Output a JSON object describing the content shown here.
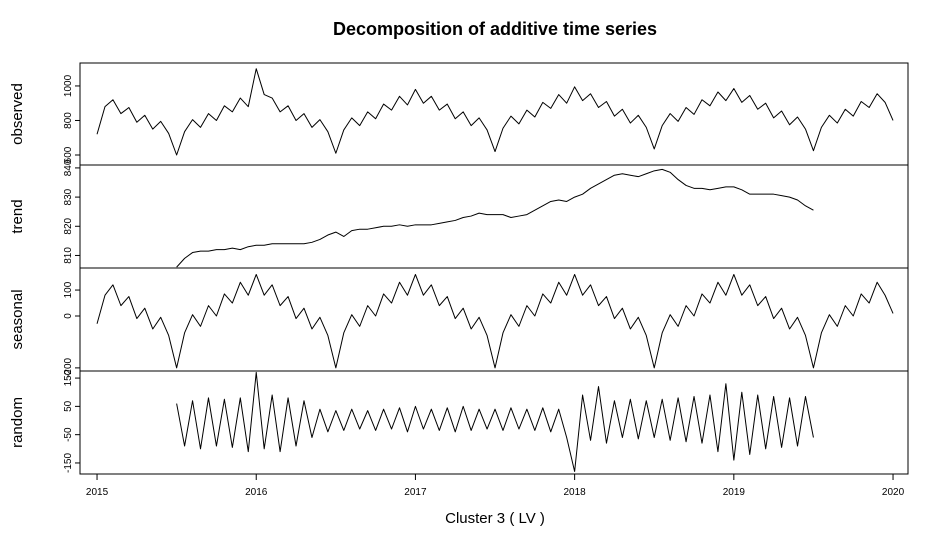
{
  "title": "Decomposition of additive time series",
  "x_label": "Cluster  3 ( LV )",
  "chart_data": [
    {
      "type": "line",
      "y_label": "observed",
      "color": "#000000",
      "xlim": [
        2014.893,
        2020.094
      ],
      "ylim": [
        542,
        1133
      ],
      "yticks": [
        600,
        800,
        1000
      ],
      "x": [
        2015,
        2015.05,
        2015.1,
        2015.15,
        2015.2,
        2015.25,
        2015.3,
        2015.35,
        2015.4,
        2015.45,
        2015.5,
        2015.55,
        2015.6,
        2015.65,
        2015.7,
        2015.75,
        2015.8,
        2015.85,
        2015.9,
        2015.95,
        2016,
        2016.05,
        2016.1,
        2016.15,
        2016.2,
        2016.25,
        2016.3,
        2016.35,
        2016.4,
        2016.45,
        2016.5,
        2016.55,
        2016.6,
        2016.65,
        2016.7,
        2016.75,
        2016.8,
        2016.85,
        2016.9,
        2016.95,
        2017,
        2017.05,
        2017.1,
        2017.15,
        2017.2,
        2017.25,
        2017.3,
        2017.35,
        2017.4,
        2017.45,
        2017.5,
        2017.55,
        2017.6,
        2017.65,
        2017.7,
        2017.75,
        2017.8,
        2017.85,
        2017.9,
        2017.95,
        2018,
        2018.05,
        2018.1,
        2018.15,
        2018.2,
        2018.25,
        2018.3,
        2018.35,
        2018.4,
        2018.45,
        2018.5,
        2018.55,
        2018.6,
        2018.65,
        2018.7,
        2018.75,
        2018.8,
        2018.85,
        2018.9,
        2018.95,
        2019,
        2019.05,
        2019.1,
        2019.15,
        2019.2,
        2019.25,
        2019.3,
        2019.35,
        2019.4,
        2019.45,
        2019.5,
        2019.55,
        2019.6,
        2019.65,
        2019.7,
        2019.75,
        2019.8,
        2019.85,
        2019.9,
        2019.95,
        2020
      ],
      "values": [
        720,
        880,
        920,
        840,
        875,
        790,
        830,
        750,
        795,
        725,
        600,
        735,
        805,
        760,
        840,
        800,
        885,
        850,
        930,
        880,
        1100,
        950,
        930,
        850,
        885,
        800,
        840,
        760,
        805,
        735,
        610,
        745,
        815,
        770,
        850,
        810,
        895,
        860,
        940,
        890,
        980,
        900,
        940,
        860,
        895,
        810,
        850,
        770,
        815,
        745,
        620,
        755,
        825,
        780,
        860,
        820,
        905,
        870,
        950,
        900,
        995,
        915,
        955,
        875,
        910,
        825,
        865,
        785,
        830,
        760,
        635,
        770,
        840,
        795,
        875,
        835,
        920,
        885,
        965,
        915,
        985,
        905,
        945,
        865,
        900,
        815,
        855,
        775,
        820,
        750,
        625,
        760,
        830,
        785,
        865,
        825,
        910,
        875,
        955,
        905,
        800
      ]
    },
    {
      "type": "line",
      "y_label": "trend",
      "color": "#000000",
      "xlim": [
        2014.893,
        2020.094
      ],
      "ylim": [
        805.7,
        841
      ],
      "yticks": [
        810,
        820,
        830,
        840
      ],
      "x": [
        2015.5,
        2015.55,
        2015.6,
        2015.65,
        2015.7,
        2015.75,
        2015.8,
        2015.85,
        2015.9,
        2015.95,
        2016,
        2016.05,
        2016.1,
        2016.15,
        2016.2,
        2016.25,
        2016.3,
        2016.35,
        2016.4,
        2016.45,
        2016.5,
        2016.55,
        2016.6,
        2016.65,
        2016.7,
        2016.75,
        2016.8,
        2016.85,
        2016.9,
        2016.95,
        2017,
        2017.05,
        2017.1,
        2017.15,
        2017.2,
        2017.25,
        2017.3,
        2017.35,
        2017.4,
        2017.45,
        2017.5,
        2017.55,
        2017.6,
        2017.65,
        2017.7,
        2017.75,
        2017.8,
        2017.85,
        2017.9,
        2017.95,
        2018,
        2018.05,
        2018.1,
        2018.15,
        2018.2,
        2018.25,
        2018.3,
        2018.35,
        2018.4,
        2018.45,
        2018.5,
        2018.55,
        2018.6,
        2018.65,
        2018.7,
        2018.75,
        2018.8,
        2018.85,
        2018.9,
        2018.95,
        2019,
        2019.05,
        2019.1,
        2019.15,
        2019.2,
        2019.25,
        2019.3,
        2019.35,
        2019.4,
        2019.45,
        2019.5
      ],
      "values": [
        806,
        809,
        811,
        811.5,
        811.5,
        812,
        812,
        812.5,
        812,
        813,
        813.5,
        813.5,
        814,
        814,
        814,
        814,
        814,
        814.5,
        815.5,
        817,
        818,
        816.5,
        818.5,
        819,
        819,
        819.5,
        820,
        820,
        820.5,
        820,
        820.5,
        820.5,
        820.5,
        821,
        821.5,
        822,
        823,
        823.5,
        824.5,
        824,
        824,
        824,
        823,
        823.5,
        824,
        825.5,
        827,
        828.5,
        829,
        828.5,
        830,
        831,
        833,
        834.5,
        836,
        837.5,
        838,
        837.5,
        837,
        838,
        839,
        839.5,
        838.5,
        836,
        834,
        833,
        833,
        832.5,
        833,
        833.5,
        833.5,
        832.5,
        831,
        831,
        831,
        831,
        830.5,
        830,
        829,
        827,
        825.5
      ]
    },
    {
      "type": "line",
      "y_label": "seasonal",
      "color": "#000000",
      "xlim": [
        2014.893,
        2020.094
      ],
      "ylim": [
        -212,
        185
      ],
      "yticks": [
        -200,
        0,
        100
      ],
      "x": [
        2015,
        2015.05,
        2015.1,
        2015.15,
        2015.2,
        2015.25,
        2015.3,
        2015.35,
        2015.4,
        2015.45,
        2015.5,
        2015.55,
        2015.6,
        2015.65,
        2015.7,
        2015.75,
        2015.8,
        2015.85,
        2015.9,
        2015.95,
        2016,
        2016.05,
        2016.1,
        2016.15,
        2016.2,
        2016.25,
        2016.3,
        2016.35,
        2016.4,
        2016.45,
        2016.5,
        2016.55,
        2016.6,
        2016.65,
        2016.7,
        2016.75,
        2016.8,
        2016.85,
        2016.9,
        2016.95,
        2017,
        2017.05,
        2017.1,
        2017.15,
        2017.2,
        2017.25,
        2017.3,
        2017.35,
        2017.4,
        2017.45,
        2017.5,
        2017.55,
        2017.6,
        2017.65,
        2017.7,
        2017.75,
        2017.8,
        2017.85,
        2017.9,
        2017.95,
        2018,
        2018.05,
        2018.1,
        2018.15,
        2018.2,
        2018.25,
        2018.3,
        2018.35,
        2018.4,
        2018.45,
        2018.5,
        2018.55,
        2018.6,
        2018.65,
        2018.7,
        2018.75,
        2018.8,
        2018.85,
        2018.9,
        2018.95,
        2019,
        2019.05,
        2019.1,
        2019.15,
        2019.2,
        2019.25,
        2019.3,
        2019.35,
        2019.4,
        2019.45,
        2019.5,
        2019.55,
        2019.6,
        2019.65,
        2019.7,
        2019.75,
        2019.8,
        2019.85,
        2019.9,
        2019.95,
        2020
      ],
      "values": [
        -30,
        80,
        120,
        40,
        75,
        -10,
        30,
        -50,
        -5,
        -75,
        -200,
        -65,
        5,
        -40,
        40,
        0,
        85,
        50,
        130,
        80,
        160,
        80,
        120,
        40,
        75,
        -10,
        30,
        -50,
        -5,
        -75,
        -200,
        -65,
        5,
        -40,
        40,
        0,
        85,
        50,
        130,
        80,
        160,
        80,
        120,
        40,
        75,
        -10,
        30,
        -50,
        -5,
        -75,
        -200,
        -65,
        5,
        -40,
        40,
        0,
        85,
        50,
        130,
        80,
        160,
        80,
        120,
        40,
        75,
        -10,
        30,
        -50,
        -5,
        -75,
        -200,
        -65,
        5,
        -40,
        40,
        0,
        85,
        50,
        130,
        80,
        160,
        80,
        120,
        40,
        75,
        -10,
        30,
        -50,
        -5,
        -75,
        -200,
        -65,
        5,
        -40,
        40,
        0,
        85,
        50,
        130,
        80,
        10
      ]
    },
    {
      "type": "line",
      "y_label": "random",
      "color": "#000000",
      "xlim": [
        2014.893,
        2020.094
      ],
      "ylim": [
        -189,
        175
      ],
      "yticks": [
        -150,
        -50,
        50,
        150
      ],
      "xticks": [
        2015,
        2016,
        2017,
        2018,
        2019,
        2020
      ],
      "x": [
        2015.5,
        2015.55,
        2015.6,
        2015.65,
        2015.7,
        2015.75,
        2015.8,
        2015.85,
        2015.9,
        2015.95,
        2016,
        2016.05,
        2016.1,
        2016.15,
        2016.2,
        2016.25,
        2016.3,
        2016.35,
        2016.4,
        2016.45,
        2016.5,
        2016.55,
        2016.6,
        2016.65,
        2016.7,
        2016.75,
        2016.8,
        2016.85,
        2016.9,
        2016.95,
        2017,
        2017.05,
        2017.1,
        2017.15,
        2017.2,
        2017.25,
        2017.3,
        2017.35,
        2017.4,
        2017.45,
        2017.5,
        2017.55,
        2017.6,
        2017.65,
        2017.7,
        2017.75,
        2017.8,
        2017.85,
        2017.9,
        2017.95,
        2018,
        2018.05,
        2018.1,
        2018.15,
        2018.2,
        2018.25,
        2018.3,
        2018.35,
        2018.4,
        2018.45,
        2018.5,
        2018.55,
        2018.6,
        2018.65,
        2018.7,
        2018.75,
        2018.8,
        2018.85,
        2018.9,
        2018.95,
        2019,
        2019.05,
        2019.1,
        2019.15,
        2019.2,
        2019.25,
        2019.3,
        2019.35,
        2019.4,
        2019.45,
        2019.5
      ],
      "values": [
        60,
        -90,
        70,
        -100,
        80,
        -90,
        75,
        -95,
        80,
        -110,
        170,
        -100,
        90,
        -110,
        80,
        -90,
        70,
        -60,
        40,
        -40,
        35,
        -35,
        40,
        -30,
        35,
        -35,
        40,
        -30,
        45,
        -40,
        50,
        -30,
        40,
        -35,
        45,
        -40,
        50,
        -35,
        40,
        -30,
        40,
        -35,
        45,
        -30,
        40,
        -35,
        45,
        -40,
        40,
        -60,
        -180,
        90,
        -70,
        120,
        -80,
        70,
        -60,
        75,
        -65,
        70,
        -60,
        75,
        -70,
        80,
        -75,
        85,
        -80,
        90,
        -110,
        130,
        -140,
        100,
        -120,
        90,
        -100,
        85,
        -95,
        80,
        -90,
        85,
        -60
      ]
    }
  ]
}
